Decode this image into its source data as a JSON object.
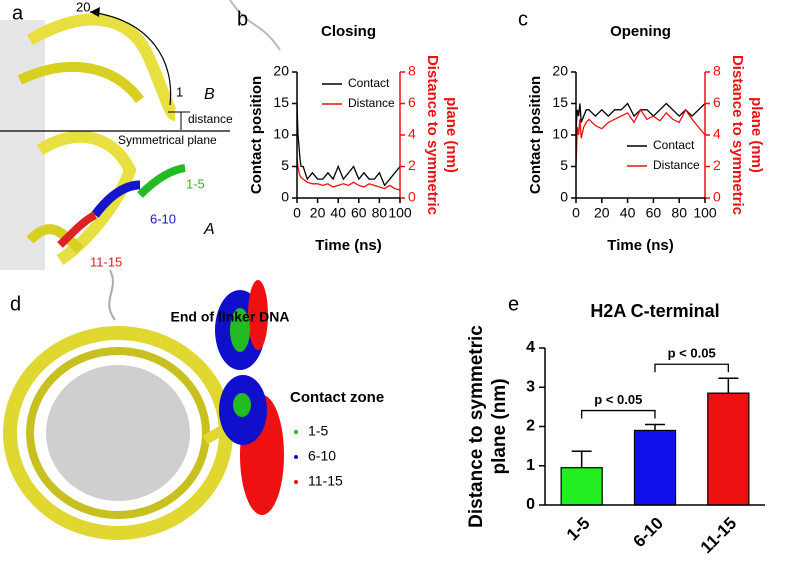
{
  "panel_labels": [
    "a",
    "b",
    "c",
    "d",
    "e"
  ],
  "panel_a": {
    "arrow_label": "20",
    "start_label": "1",
    "zone_label": "B",
    "distance_label": "distance",
    "plane_label": "Symmetrical plane",
    "segments": [
      "1-5",
      "6-10",
      "11-15"
    ],
    "segment_zone": "A"
  },
  "panel_d": {
    "title": "End of linker DNA",
    "legend_title": "Contact zone",
    "legend": [
      {
        "name": "1-5",
        "color": "#22bb22"
      },
      {
        "name": "6-10",
        "color": "#1010cc"
      },
      {
        "name": "11-15",
        "color": "#ee1111"
      }
    ]
  },
  "chart_data": [
    {
      "type": "line",
      "title": "Closing",
      "xlabel": "Time (ns)",
      "ylabel": "Contact position",
      "y2label": [
        "Distance to symmetric",
        "plane (nm)"
      ],
      "x": [
        0,
        1,
        2,
        3,
        4,
        6,
        8,
        10,
        15,
        20,
        25,
        30,
        35,
        40,
        45,
        50,
        55,
        60,
        65,
        70,
        75,
        80,
        85,
        90,
        95,
        100
      ],
      "series": [
        {
          "name": "Contact",
          "color": "#000000",
          "values": [
            15,
            10,
            8,
            6,
            5,
            5,
            4,
            3,
            4,
            3,
            3,
            4,
            3,
            5,
            3,
            4,
            5,
            3,
            4,
            3,
            3,
            4,
            2,
            3,
            4,
            5
          ]
        },
        {
          "name": "Distance",
          "color": "#ee1111",
          "axis": "y2",
          "values": [
            2.5,
            2.0,
            1.6,
            1.4,
            1.3,
            1.2,
            1.1,
            1.0,
            0.9,
            0.9,
            0.8,
            0.9,
            0.7,
            0.8,
            0.9,
            0.8,
            1.0,
            0.8,
            0.7,
            0.9,
            0.8,
            0.7,
            0.6,
            0.8,
            0.6,
            0.5
          ]
        }
      ],
      "xlim": [
        0,
        100
      ],
      "xticks": [
        0,
        20,
        40,
        60,
        80,
        100
      ],
      "ylim": [
        0,
        20
      ],
      "yticks": [
        0,
        5,
        10,
        15,
        20
      ],
      "y2lim": [
        0,
        8
      ],
      "y2ticks": [
        0,
        2,
        4,
        6,
        8
      ],
      "legend": "upper right"
    },
    {
      "type": "line",
      "title": "Opening",
      "xlabel": "Time (ns)",
      "ylabel": "Contact position",
      "y2label": [
        "Distance to symmetric",
        "plane (nm)"
      ],
      "x": [
        0,
        1,
        2,
        3,
        4,
        6,
        8,
        10,
        15,
        20,
        25,
        30,
        35,
        40,
        45,
        50,
        55,
        60,
        65,
        70,
        75,
        80,
        85,
        90,
        95,
        100
      ],
      "series": [
        {
          "name": "Contact",
          "color": "#000000",
          "values": [
            11,
            14,
            13,
            15,
            12,
            13,
            14,
            14,
            13,
            14,
            13,
            14,
            14,
            15,
            13,
            14,
            14,
            13,
            14,
            15,
            14,
            13,
            14,
            13,
            14,
            15
          ]
        },
        {
          "name": "Distance",
          "color": "#ee1111",
          "axis": "y2",
          "values": [
            2.0,
            4.5,
            4.0,
            5.0,
            3.8,
            4.5,
            4.8,
            5.0,
            4.6,
            4.4,
            4.8,
            5.0,
            5.2,
            5.4,
            4.8,
            5.6,
            5.0,
            5.2,
            4.9,
            5.4,
            5.0,
            4.8,
            5.6,
            5.0,
            4.5,
            4.0
          ]
        }
      ],
      "xlim": [
        0,
        100
      ],
      "xticks": [
        0,
        20,
        40,
        60,
        80,
        100
      ],
      "ylim": [
        0,
        20
      ],
      "yticks": [
        0,
        5,
        10,
        15,
        20
      ],
      "y2lim": [
        0,
        8
      ],
      "y2ticks": [
        0,
        2,
        4,
        6,
        8
      ],
      "legend": "lower right"
    },
    {
      "type": "bar",
      "title": "H2A C-terminal",
      "ylabel": [
        "Distance to symmetric",
        "plane (nm)"
      ],
      "categories": [
        "1-5",
        "6-10",
        "11-15"
      ],
      "values": [
        0.95,
        1.9,
        2.85
      ],
      "errors": [
        0.42,
        0.15,
        0.38
      ],
      "colors": [
        "#22ee22",
        "#1010ee",
        "#ee1111"
      ],
      "ylim": [
        0,
        4
      ],
      "yticks": [
        0,
        1,
        2,
        3,
        4
      ],
      "annotations": [
        "p < 0.05",
        "p < 0.05"
      ]
    }
  ]
}
